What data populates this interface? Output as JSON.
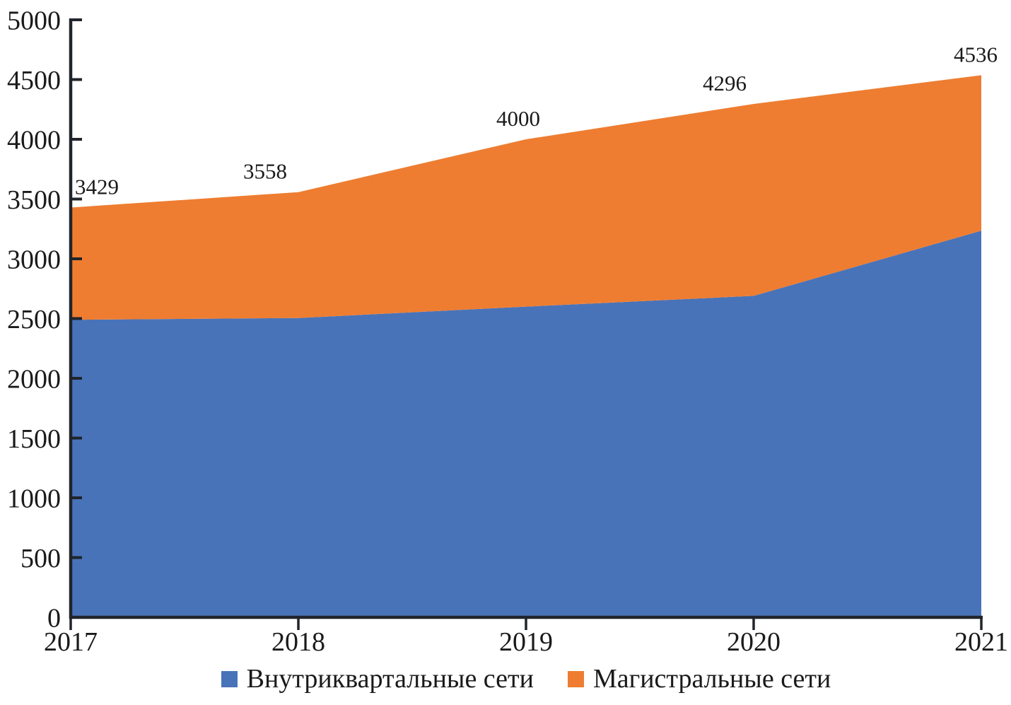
{
  "figure": {
    "background": "#ffffff",
    "text_color": "#1a1a1a",
    "axis_color": "#20242b"
  },
  "chart_data": {
    "type": "area",
    "stacked": true,
    "title": "",
    "xlabel": "",
    "ylabel": "",
    "categories": [
      "2017",
      "2018",
      "2019",
      "2020",
      "2021"
    ],
    "series": [
      {
        "name": "Внутриквартальные сети",
        "color": "#4973B8",
        "values": [
          2490,
          2505,
          2600,
          2690,
          3235
        ]
      },
      {
        "name": "Магистральные сети",
        "color": "#EE7D31",
        "values": [
          939,
          1053,
          1400,
          1606,
          1301
        ]
      }
    ],
    "stack_totals": [
      3429,
      3558,
      4000,
      4296,
      4536
    ],
    "total_labels": [
      "3429",
      "3558",
      "4000",
      "4296",
      "4536"
    ],
    "ylim": [
      0,
      5000
    ],
    "y_tick_step": 500,
    "y_tick_labels": [
      "0",
      "500",
      "1000",
      "1500",
      "2000",
      "2500",
      "3000",
      "3500",
      "4000",
      "4500",
      "5000"
    ],
    "grid": "off",
    "legend_position": "bottom"
  }
}
